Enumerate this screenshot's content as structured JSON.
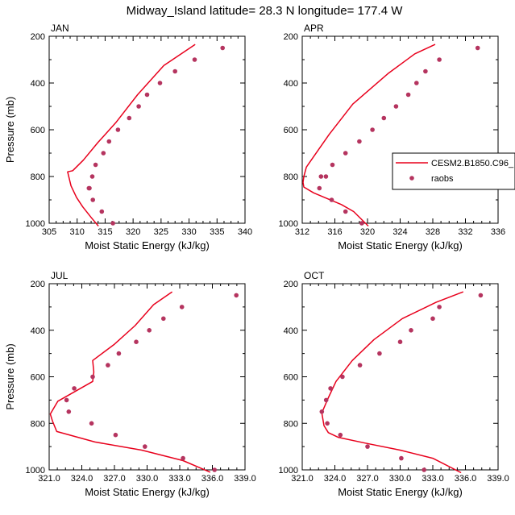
{
  "figure": {
    "title": "Midway_Island  latitude= 28.3 N longitude= 177.4 W"
  },
  "legend": {
    "model_label": "CESM2.B1850.C96_",
    "obs_label": "raobs",
    "line_color": "#e8001c",
    "marker_color": "#b5345f"
  },
  "chart_data": [
    {
      "type": "line",
      "panel": "JAN",
      "xlabel": "Moist Static Energy (kJ/kg)",
      "ylabel": "Pressure (mb)",
      "xlim": [
        305,
        340
      ],
      "ylim": [
        1000,
        200
      ],
      "xticks": [
        305,
        310,
        315,
        320,
        325,
        330,
        335,
        340
      ],
      "xtick_labels": [
        "305",
        "310",
        "315",
        "320",
        "325",
        "330",
        "335",
        "340"
      ],
      "yticks": [
        200,
        400,
        600,
        800,
        1000
      ],
      "yticks_minor": [
        300,
        500,
        700,
        900
      ],
      "series": [
        {
          "name": "CESM2.B1850.C96_",
          "style": "line",
          "x": [
            331.1,
            325.5,
            320.8,
            316.9,
            313.7,
            311.1,
            309.2,
            308.3,
            308.9,
            309.9,
            311.0,
            312.5,
            313.8
          ],
          "y": [
            235,
            325,
            450,
            570,
            655,
            730,
            775,
            780,
            840,
            890,
            930,
            975,
            1012
          ]
        },
        {
          "name": "raobs",
          "style": "markers",
          "x": [
            336.0,
            331.0,
            327.5,
            324.8,
            322.5,
            321.0,
            319.3,
            317.3,
            315.7,
            314.7,
            313.3,
            312.7,
            312.2,
            312.1,
            312.8,
            314.4,
            316.4
          ],
          "y": [
            250,
            300,
            350,
            400,
            450,
            500,
            550,
            600,
            650,
            700,
            750,
            800,
            850,
            850,
            900,
            950,
            1000
          ]
        }
      ]
    },
    {
      "type": "line",
      "panel": "APR",
      "xlabel": "Moist Static Energy (kJ/kg)",
      "ylabel": "",
      "xlim": [
        312,
        336
      ],
      "ylim": [
        1000,
        200
      ],
      "xticks": [
        312,
        316,
        320,
        324,
        328,
        332,
        336
      ],
      "xtick_labels": [
        "312",
        "316",
        "320",
        "324",
        "328",
        "332",
        "336"
      ],
      "yticks": [
        200,
        400,
        600,
        800,
        1000
      ],
      "yticks_minor": [
        300,
        500,
        700,
        900
      ],
      "series": [
        {
          "name": "CESM2.B1850.C96_",
          "style": "line",
          "x": [
            328.3,
            325.8,
            322.5,
            318.2,
            315.3,
            313.6,
            312.5,
            312.2,
            312.1,
            312.2,
            313.4,
            315.1,
            316.8,
            318.3,
            320.1
          ],
          "y": [
            235,
            275,
            360,
            490,
            620,
            705,
            760,
            800,
            825,
            845,
            870,
            895,
            920,
            950,
            1012
          ]
        },
        {
          "name": "raobs",
          "style": "markers",
          "x": [
            333.5,
            328.8,
            327.1,
            326.0,
            325.0,
            323.5,
            322.0,
            320.6,
            319.0,
            317.3,
            315.7,
            314.9,
            314.3,
            314.1,
            315.6,
            317.3,
            319.3
          ],
          "y": [
            250,
            300,
            350,
            400,
            450,
            500,
            550,
            600,
            650,
            700,
            750,
            800,
            800,
            850,
            900,
            950,
            1000
          ]
        }
      ]
    },
    {
      "type": "line",
      "panel": "JUL",
      "xlabel": "Moist Static Energy (kJ/kg)",
      "ylabel": "Pressure (mb)",
      "xlim": [
        321,
        339
      ],
      "ylim": [
        1000,
        200
      ],
      "xticks": [
        321,
        324,
        327,
        330,
        333,
        336,
        339
      ],
      "xtick_labels": [
        "321.0",
        "324.0",
        "327.0",
        "330.0",
        "333.0",
        "336.0",
        "339.0"
      ],
      "yticks": [
        200,
        400,
        600,
        800,
        1000
      ],
      "yticks_minor": [
        300,
        500,
        700,
        900
      ],
      "series": [
        {
          "name": "CESM2.B1850.C96_",
          "style": "line",
          "x": [
            332.3,
            330.6,
            328.9,
            327.0,
            325.0,
            325.1,
            325.0,
            321.8,
            321.1,
            321.3,
            321.7,
            325.2,
            329.5,
            333.3,
            335.8
          ],
          "y": [
            235,
            290,
            380,
            460,
            530,
            580,
            620,
            705,
            760,
            790,
            835,
            880,
            915,
            960,
            1010
          ]
        },
        {
          "name": "raobs",
          "style": "markers",
          "x": [
            338.2,
            333.2,
            331.5,
            330.2,
            329.0,
            327.4,
            326.4,
            325.0,
            323.3,
            322.6,
            322.8,
            324.9,
            327.1,
            329.8,
            333.3,
            336.2
          ],
          "y": [
            250,
            300,
            350,
            400,
            450,
            500,
            550,
            600,
            650,
            700,
            750,
            800,
            850,
            900,
            950,
            1000
          ]
        }
      ]
    },
    {
      "type": "line",
      "panel": "OCT",
      "xlabel": "Moist Static Energy (kJ/kg)",
      "ylabel": "",
      "xlim": [
        321,
        339
      ],
      "ylim": [
        1000,
        200
      ],
      "xticks": [
        321,
        324,
        327,
        330,
        333,
        336,
        339
      ],
      "xtick_labels": [
        "321.0",
        "324.0",
        "327.0",
        "330.0",
        "333.0",
        "336.0",
        "339.0"
      ],
      "yticks": [
        200,
        400,
        600,
        800,
        1000
      ],
      "yticks_minor": [
        300,
        500,
        700,
        900
      ],
      "series": [
        {
          "name": "CESM2.B1850.C96_",
          "style": "line",
          "x": [
            335.8,
            333.3,
            330.2,
            327.6,
            325.6,
            324.1,
            323.4,
            322.8,
            323.0,
            323.4,
            324.3,
            326.8,
            330.0,
            333.0,
            335.6
          ],
          "y": [
            235,
            280,
            350,
            440,
            530,
            620,
            690,
            755,
            810,
            840,
            860,
            885,
            915,
            950,
            1012
          ]
        },
        {
          "name": "raobs",
          "style": "markers",
          "x": [
            337.4,
            333.6,
            333.0,
            331.0,
            330.0,
            328.1,
            326.3,
            324.7,
            323.6,
            323.2,
            322.8,
            323.3,
            324.5,
            327.0,
            330.1,
            332.2
          ],
          "y": [
            250,
            300,
            350,
            400,
            450,
            500,
            550,
            600,
            650,
            700,
            750,
            800,
            850,
            900,
            950,
            1000
          ]
        }
      ]
    }
  ]
}
